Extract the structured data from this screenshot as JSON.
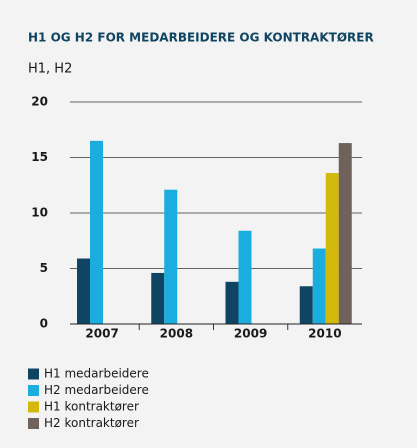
{
  "chart_data": {
    "type": "bar",
    "title": "H1 OG H2 FOR MEDARBEIDERE OG KONTRAKTØRER",
    "subtitle": "H1, H2",
    "categories": [
      "2007",
      "2008",
      "2009",
      "2010"
    ],
    "series": [
      {
        "name": "H1 medarbeidere",
        "color": "#0f4462",
        "values": [
          5.9,
          4.6,
          3.8,
          3.4
        ]
      },
      {
        "name": "H2 medarbeidere",
        "color": "#1badde",
        "values": [
          16.5,
          12.1,
          8.4,
          6.8
        ]
      },
      {
        "name": "H1 kontraktører",
        "color": "#d2b90c",
        "values": [
          null,
          null,
          null,
          13.6
        ]
      },
      {
        "name": "H2 kontraktører",
        "color": "#6e625a",
        "values": [
          null,
          null,
          null,
          16.3
        ]
      }
    ],
    "ylim": [
      0,
      20
    ],
    "yticks": [
      0,
      5,
      10,
      15,
      20
    ],
    "grid": true
  }
}
